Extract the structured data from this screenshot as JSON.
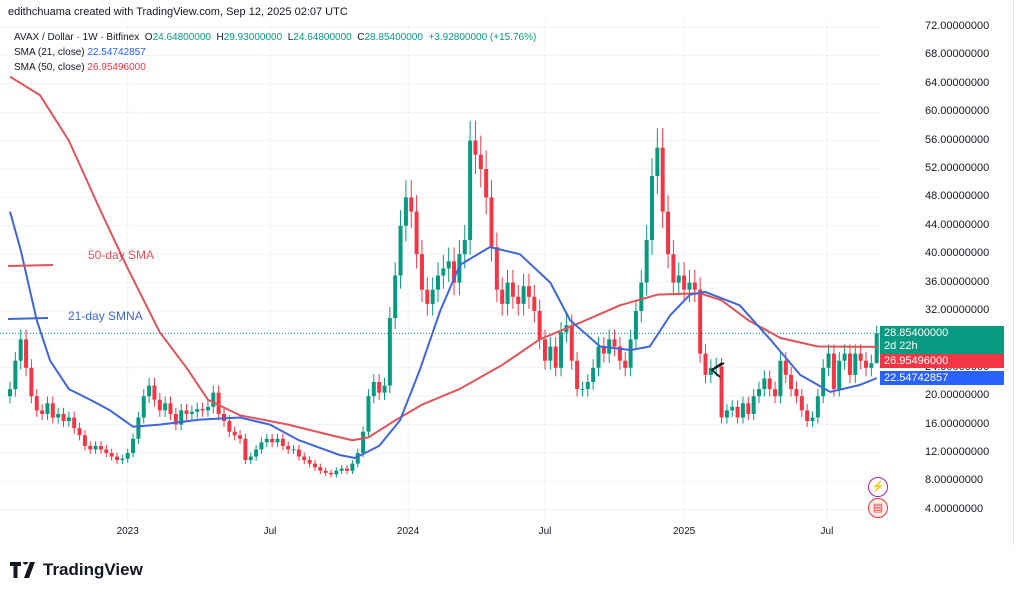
{
  "header": {
    "credit": "edithchuama created with TradingView.com, Sep 12, 2025 02:07 UTC"
  },
  "legend": {
    "symbol": "AVAX / Dollar · 1W · Bitfinex",
    "o_label": "O",
    "o": "24.64800000",
    "h_label": "H",
    "h": "29.93000000",
    "l_label": "L",
    "l": "24.64800000",
    "c_label": "C",
    "c": "28.85400000",
    "change": "+3.92800000 (+15.76%)",
    "sma21_label": "SMA (21, close)",
    "sma21_value": "22.54742857",
    "sma50_label": "SMA (50, close)",
    "sma50_value": "26.95496000"
  },
  "annotations": {
    "sma50": "50-day SMA",
    "sma21": "21-day SMNA"
  },
  "badges": {
    "price": "28.85400000",
    "countdown": "2d 22h",
    "sma50": "26.95496000",
    "sma21": "22.54742857"
  },
  "footer": {
    "brand": "TradingView"
  },
  "colors": {
    "up": "#089981",
    "down": "#f23645",
    "sma21": "#3f66d6",
    "sma50": "#e0535a"
  },
  "chart_data": {
    "type": "candlestick",
    "title": "AVAX / Dollar · 1W · Bitfinex",
    "ylim": [
      4,
      72
    ],
    "y_ticks": [
      "72.00000000",
      "68.00000000",
      "64.00000000",
      "60.00000000",
      "56.00000000",
      "52.00000000",
      "48.00000000",
      "44.00000000",
      "40.00000000",
      "36.00000000",
      "32.00000000",
      "28.00000000",
      "24.00000000",
      "20.00000000",
      "16.00000000",
      "12.00000000",
      "8.00000000",
      "4.00000000"
    ],
    "x_ticks": [
      {
        "label": "2023",
        "week": 22
      },
      {
        "label": "Jul",
        "week": 48.6
      },
      {
        "label": "2024",
        "week": 74.4
      },
      {
        "label": "Jul",
        "week": 100
      },
      {
        "label": "2025",
        "week": 126
      },
      {
        "label": "Jul",
        "week": 152.7
      }
    ],
    "weekly_close": [
      21,
      25,
      28,
      24,
      20,
      18,
      17.5,
      19,
      17,
      17.5,
      16.5,
      17,
      15.5,
      14.5,
      13,
      12.5,
      13,
      12.5,
      12,
      11.5,
      11,
      11.2,
      12,
      14,
      17,
      20,
      21.5,
      19.5,
      18,
      19,
      17.5,
      16,
      18,
      17.5,
      17.8,
      18.2,
      18,
      18.5,
      20.5,
      17.5,
      16.5,
      15,
      14.5,
      14,
      11,
      11.5,
      12.5,
      13.5,
      14,
      13.5,
      14,
      13,
      12.5,
      12.5,
      11.5,
      11,
      10.5,
      10,
      9.5,
      9.2,
      9,
      9.5,
      9.8,
      9.5,
      10.5,
      12,
      15,
      20,
      22,
      20.5,
      21.5,
      31,
      37,
      44,
      48,
      46,
      40,
      35,
      33,
      35,
      37,
      38,
      39,
      36,
      40,
      42,
      56,
      54,
      52,
      48,
      41,
      35,
      33,
      36,
      34,
      33,
      35.5,
      34,
      32,
      28,
      25,
      27,
      24,
      29,
      30,
      25,
      21,
      21,
      22,
      24,
      27,
      26,
      28,
      27,
      25,
      24,
      28,
      32,
      36,
      42,
      51,
      55,
      46,
      40,
      36,
      37,
      35,
      36,
      35,
      26,
      23,
      24,
      24.2,
      17,
      18,
      18.5,
      17,
      19,
      17.5,
      20,
      21,
      22.5,
      21,
      20,
      25,
      23,
      21,
      20,
      18,
      16.5,
      17,
      20,
      24,
      26,
      21,
      25,
      26,
      23,
      26,
      25,
      24,
      24.648,
      28.854
    ],
    "first_open": 20,
    "last_candle": {
      "open": 24.648,
      "high": 29.93,
      "low": 24.648,
      "close": 28.854
    },
    "current_price": 28.854,
    "sma21": [
      [
        0,
        46
      ],
      [
        2,
        40.6
      ],
      [
        5,
        30.7
      ],
      [
        7.5,
        25
      ],
      [
        11,
        21
      ],
      [
        15,
        19.5
      ],
      [
        18.7,
        18
      ],
      [
        23,
        15.7
      ],
      [
        28,
        16
      ],
      [
        35.5,
        16.7
      ],
      [
        43,
        17
      ],
      [
        48.6,
        16
      ],
      [
        54,
        13.8
      ],
      [
        61.7,
        11.7
      ],
      [
        64.5,
        11.3
      ],
      [
        69,
        13
      ],
      [
        72.9,
        16.6
      ],
      [
        76.6,
        23.7
      ],
      [
        80.4,
        32
      ],
      [
        84.1,
        38.5
      ],
      [
        89.7,
        41
      ],
      [
        95.3,
        40
      ],
      [
        101,
        36
      ],
      [
        104.7,
        30.7
      ],
      [
        110.3,
        27
      ],
      [
        116,
        26.5
      ],
      [
        119.6,
        27
      ],
      [
        123.4,
        31.4
      ],
      [
        127.1,
        34.3
      ],
      [
        129.9,
        34.7
      ],
      [
        136.4,
        32.8
      ],
      [
        142.1,
        28
      ],
      [
        147.7,
        23
      ],
      [
        153.3,
        20.6
      ],
      [
        158.9,
        21.6
      ],
      [
        162,
        22.547
      ]
    ],
    "sma50": [
      [
        0,
        65
      ],
      [
        5.6,
        62.4
      ],
      [
        11,
        56
      ],
      [
        17,
        46
      ],
      [
        22,
        38
      ],
      [
        28,
        29
      ],
      [
        33,
        24
      ],
      [
        37,
        19.5
      ],
      [
        43,
        17.3
      ],
      [
        52,
        16
      ],
      [
        60,
        14.5
      ],
      [
        64,
        13.8
      ],
      [
        67,
        14.2
      ],
      [
        72,
        16.6
      ],
      [
        77,
        18.8
      ],
      [
        84,
        21
      ],
      [
        92,
        24.4
      ],
      [
        99,
        28
      ],
      [
        107,
        30.5
      ],
      [
        114,
        32.8
      ],
      [
        121,
        34.3
      ],
      [
        129,
        34.5
      ],
      [
        133,
        33.5
      ],
      [
        138,
        30.7
      ],
      [
        144,
        28.2
      ],
      [
        151,
        27
      ],
      [
        162,
        26.955
      ]
    ]
  }
}
